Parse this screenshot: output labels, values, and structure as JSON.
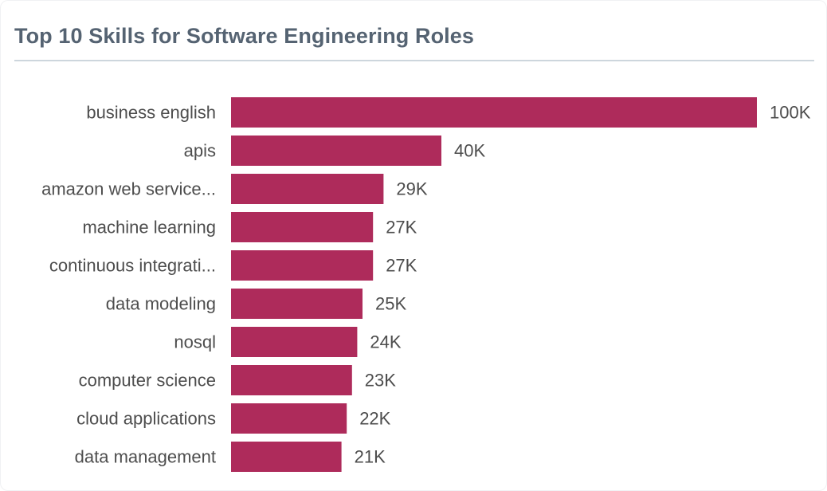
{
  "header": {
    "title": "Top 10 Skills for Software Engineering Roles"
  },
  "colors": {
    "bar": "#ae2b5b",
    "title": "#556372",
    "label": "#4d4d4d",
    "divider": "#cdd6dd"
  },
  "chart_data": {
    "type": "bar",
    "orientation": "horizontal",
    "title": "Top 10 Skills for Software Engineering Roles",
    "xlabel": "",
    "ylabel": "",
    "grid": false,
    "legend": "none",
    "categories": [
      "business english",
      "apis",
      "amazon web service...",
      "machine learning",
      "continuous integrati...",
      "data modeling",
      "nosql",
      "computer science",
      "cloud applications",
      "data management"
    ],
    "values": [
      100,
      40,
      29,
      27,
      27,
      25,
      24,
      23,
      22,
      21
    ],
    "value_labels": [
      "100K",
      "40K",
      "29K",
      "27K",
      "27K",
      "25K",
      "24K",
      "23K",
      "22K",
      "21K"
    ],
    "unit": "K",
    "xlim": [
      0,
      100
    ]
  }
}
